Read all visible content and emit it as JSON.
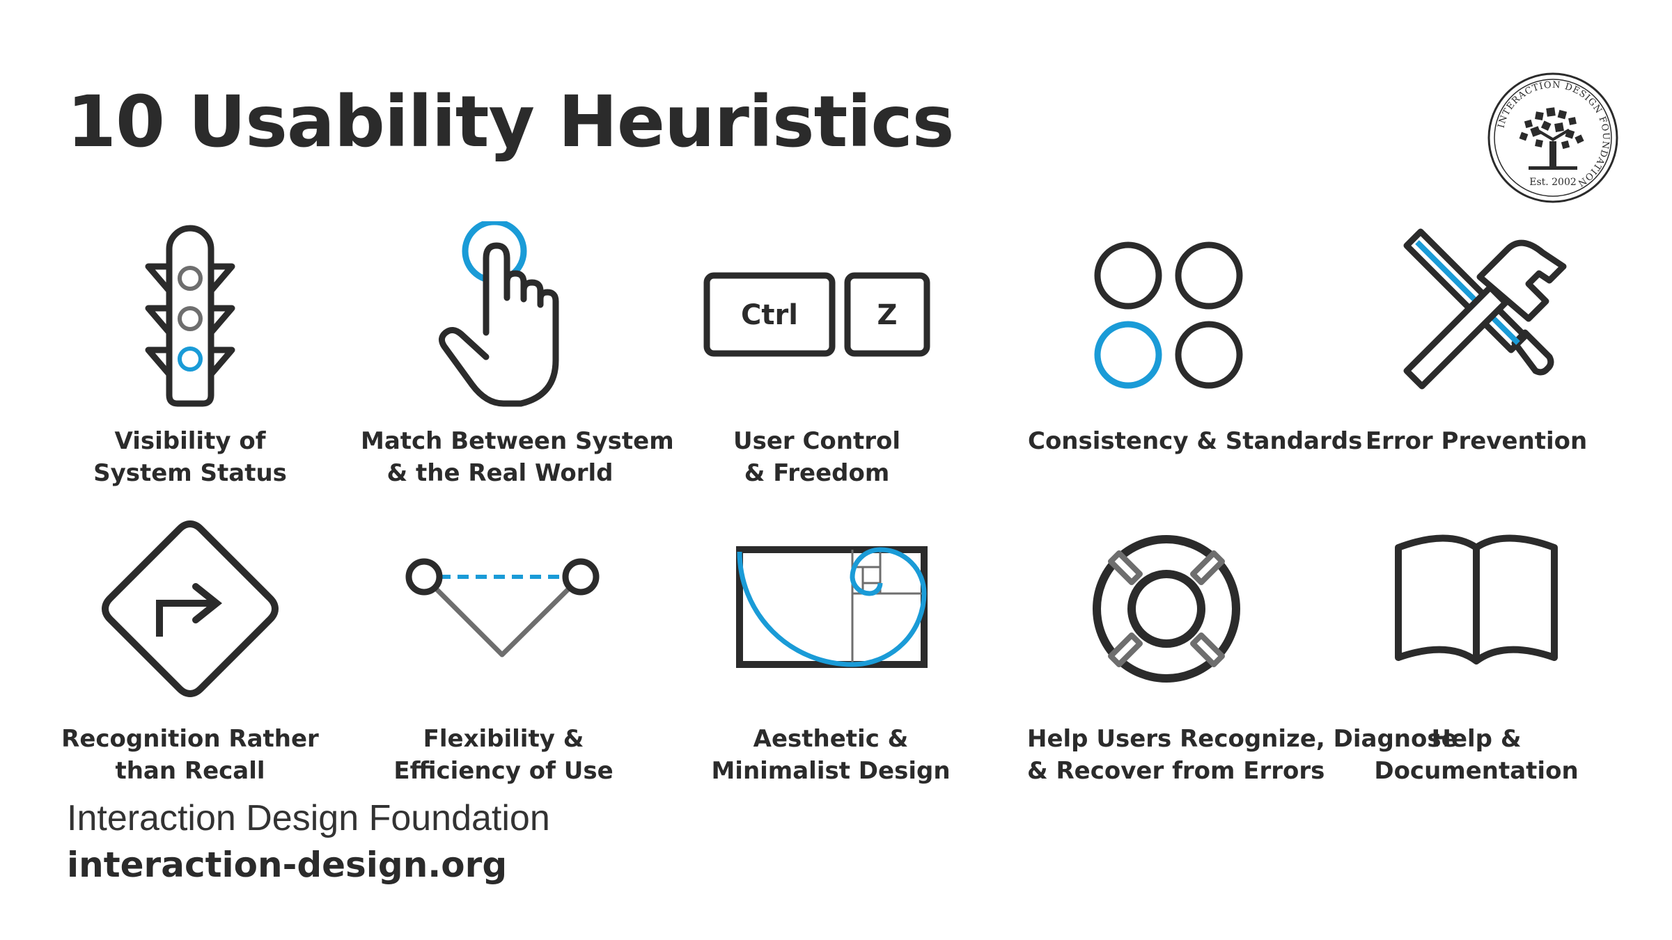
{
  "title": "10 Usability Heuristics",
  "logo": {
    "text_ring": "INTERACTION DESIGN FOUNDATION",
    "est": "Est. 2002"
  },
  "accent_color": "#1a9bd7",
  "dark_color": "#2b2b2b",
  "gray_color": "#6e6e6e",
  "heuristics": [
    {
      "icon": "traffic-light-icon",
      "lines": [
        "Visibility of",
        "System Status"
      ]
    },
    {
      "icon": "pointing-hand-icon",
      "lines": [
        "Match Between System",
        "& the Real World"
      ]
    },
    {
      "icon": "ctrl-z-keys-icon",
      "keys": [
        "Ctrl",
        "Z"
      ],
      "lines": [
        "User Control",
        "& Freedom"
      ]
    },
    {
      "icon": "four-circles-icon",
      "lines": [
        "Consistency & Standards"
      ]
    },
    {
      "icon": "tools-icon",
      "lines": [
        "Error Prevention"
      ]
    },
    {
      "icon": "road-sign-icon",
      "lines": [
        "Recognition Rather",
        "than Recall"
      ]
    },
    {
      "icon": "shortcut-path-icon",
      "lines": [
        "Flexibility &",
        "Efficiency of Use"
      ]
    },
    {
      "icon": "golden-spiral-icon",
      "lines": [
        "Aesthetic &",
        "Minimalist Design"
      ]
    },
    {
      "icon": "lifebuoy-icon",
      "lines": [
        "Help Users Recognize, Diagnose",
        "& Recover from Errors"
      ]
    },
    {
      "icon": "open-book-icon",
      "lines": [
        "Help &",
        "Documentation"
      ]
    }
  ],
  "footer": {
    "name": "Interaction Design Foundation",
    "url": "interaction-design.org"
  }
}
